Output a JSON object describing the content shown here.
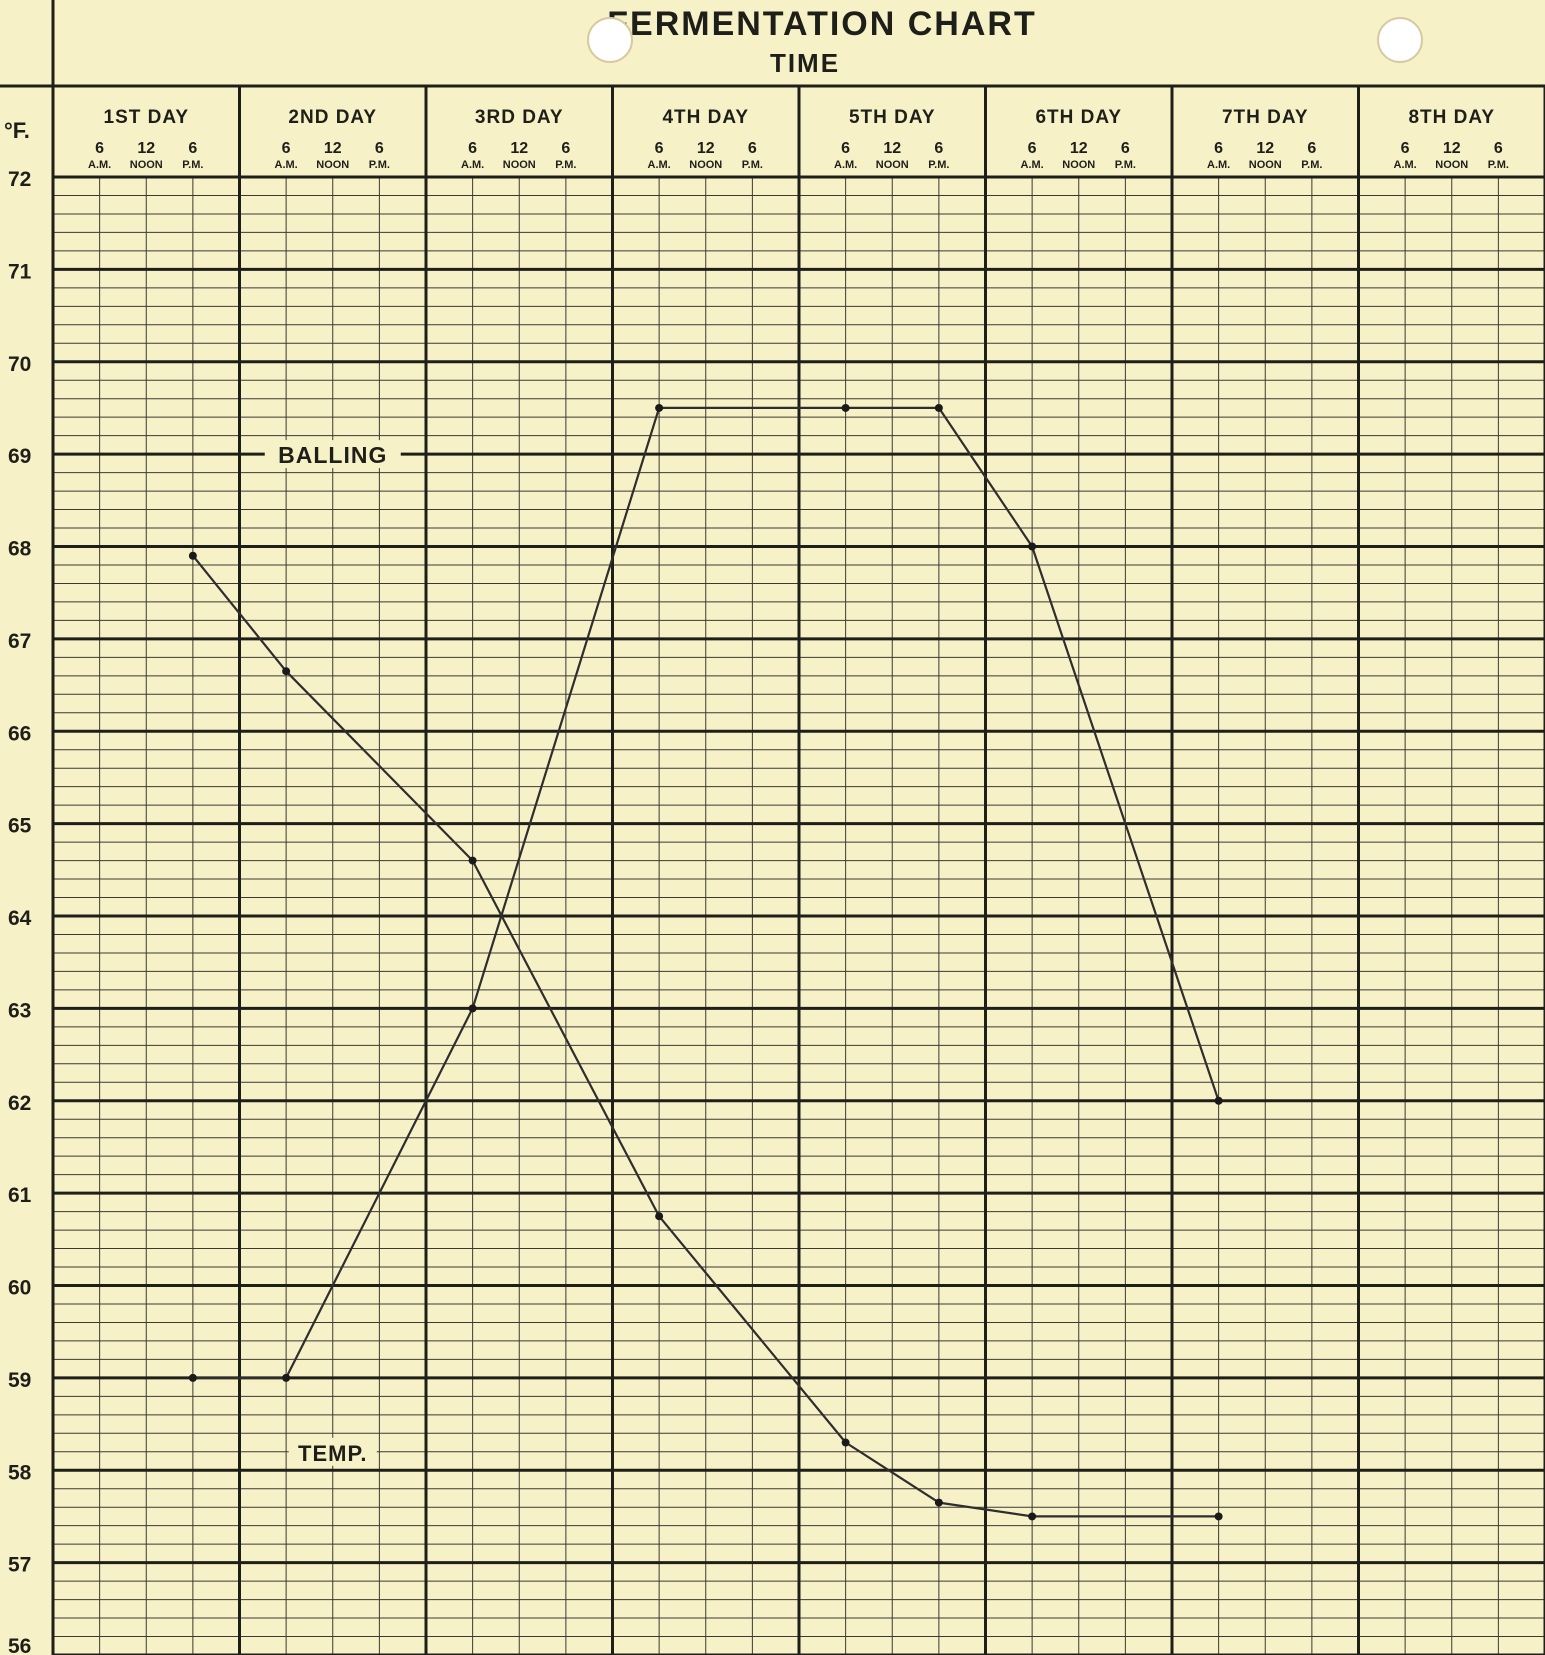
{
  "chart_data": {
    "type": "line",
    "title": "FERMENTATION CHART",
    "subtitle": "TIME",
    "ylabel": "°F.",
    "ylim": [
      56,
      72
    ],
    "yticks": [
      "56",
      "57",
      "58",
      "59",
      "60",
      "61",
      "62",
      "63",
      "64",
      "65",
      "66",
      "67",
      "68",
      "69",
      "70",
      "71",
      "72"
    ],
    "xlim": [
      0,
      8
    ],
    "days": [
      "1ST DAY",
      "2ND DAY",
      "3RD DAY",
      "4TH DAY",
      "5TH DAY",
      "6TH DAY",
      "7TH DAY",
      "8TH DAY"
    ],
    "time_ticks": [
      {
        "num": "6",
        "sub": "A.M."
      },
      {
        "num": "12",
        "sub": "NOON"
      },
      {
        "num": "6",
        "sub": "P.M."
      }
    ],
    "grid": true,
    "series": [
      {
        "name": "BALLING",
        "x": [
          0.75,
          1.25,
          2.25,
          3.25,
          4.25,
          4.75,
          5.25,
          6.25
        ],
        "y": [
          67.9,
          66.65,
          64.6,
          60.75,
          58.3,
          57.65,
          57.5,
          57.5
        ]
      },
      {
        "name": "TEMP.",
        "x": [
          0.75,
          1.25,
          2.25,
          3.25,
          4.25,
          4.75,
          5.25,
          6.25
        ],
        "y": [
          59.0,
          59.0,
          63.0,
          69.5,
          69.5,
          69.5,
          68.0,
          62.0
        ]
      }
    ],
    "colors": {
      "paper": "#f7f1c8",
      "ink": "#1f1f1a",
      "grid": "#3a3a32",
      "line": "#2e2e2e"
    }
  }
}
